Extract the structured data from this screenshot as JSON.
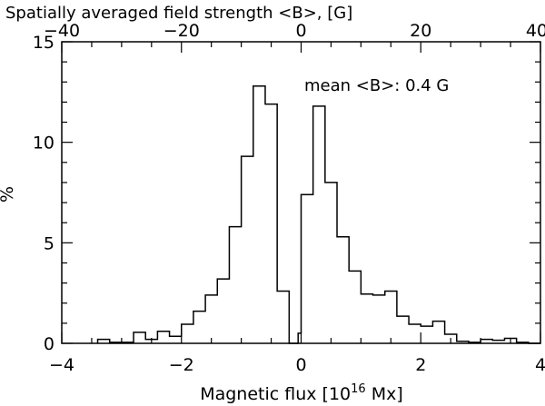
{
  "chart_data": {
    "type": "histogram-step",
    "xlabel": "Magnetic flux [10",
    "xlabel_sup": "16",
    "xlabel_end": " Mx]",
    "ylabel": "%",
    "top_axis_label": "Spatially averaged field strength <B>, [G]",
    "annotation": "mean <B>: 0.4 G",
    "xlim": [
      -4,
      4
    ],
    "ylim": [
      0,
      15
    ],
    "top_xlim": [
      -40,
      40
    ],
    "x_ticks": [
      -4,
      -2,
      0,
      2,
      4
    ],
    "x_tick_labels": [
      "−4",
      "−2",
      "0",
      "2",
      "4"
    ],
    "y_ticks": [
      0,
      5,
      10,
      15
    ],
    "y_tick_labels": [
      "0",
      "5",
      "10",
      "15"
    ],
    "top_ticks": [
      -40,
      -20,
      0,
      20,
      40
    ],
    "top_tick_labels": [
      "−40",
      "−20",
      "0",
      "20",
      "40"
    ],
    "bin_edges": [
      -3.4,
      -3.2,
      -3.0,
      -2.8,
      -2.6,
      -2.4,
      -2.2,
      -2.0,
      -1.8,
      -1.6,
      -1.4,
      -1.2,
      -1.0,
      -0.8,
      -0.6,
      -0.4,
      -0.2,
      -0.05,
      0.0,
      0.2,
      0.4,
      0.6,
      0.8,
      1.0,
      1.2,
      1.4,
      1.6,
      1.8,
      2.0,
      2.2,
      2.4,
      2.6,
      2.8,
      3.0,
      3.2,
      3.4,
      3.6,
      3.8,
      4.0
    ],
    "values": [
      0.2,
      0.05,
      0.05,
      0.55,
      0.2,
      0.6,
      0.35,
      0.95,
      1.6,
      2.4,
      3.2,
      5.8,
      9.3,
      12.8,
      11.9,
      2.6,
      0,
      0.5,
      7.4,
      11.8,
      8.0,
      5.3,
      3.6,
      2.45,
      2.4,
      2.6,
      1.35,
      0.95,
      0.85,
      1.1,
      0.45,
      0.1,
      0.05,
      0.2,
      0.15,
      0.25,
      0.05,
      0
    ]
  }
}
